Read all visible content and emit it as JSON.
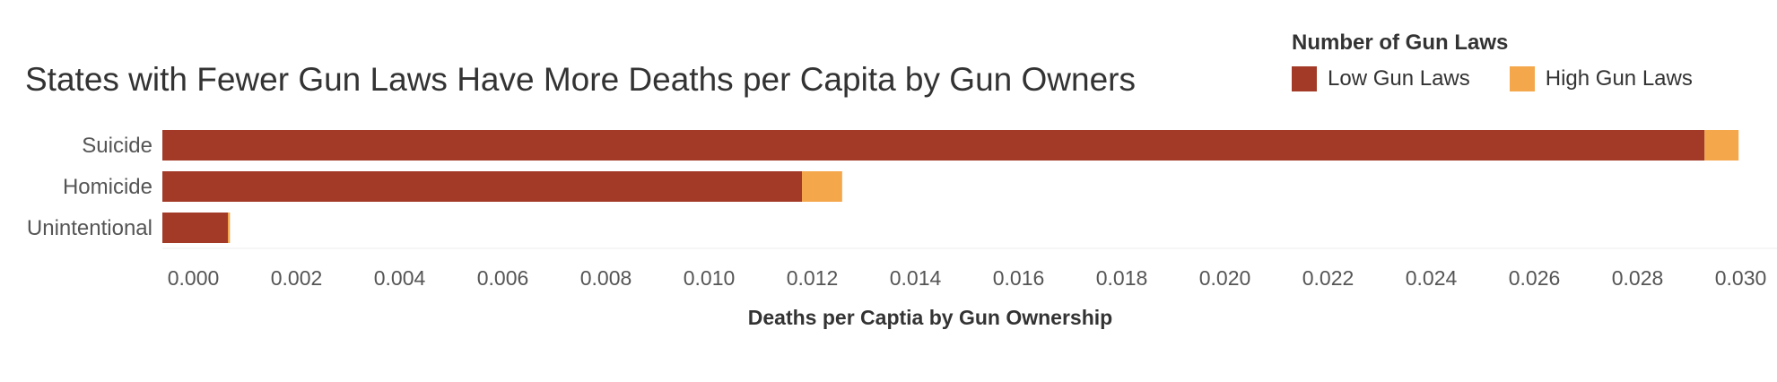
{
  "chart_data": {
    "type": "bar",
    "orientation": "horizontal",
    "stacked": true,
    "title": "States with Fewer Gun Laws Have More Deaths per Capita by Gun Owners",
    "xlabel": "Deaths per Captia by Gun Ownership",
    "ylabel": "",
    "categories": [
      "Suicide",
      "Homicide",
      "Unintentional"
    ],
    "series": [
      {
        "name": "Low Gun Laws",
        "color": "#a33a27",
        "values": [
          0.0293,
          0.0118,
          0.00067
        ]
      },
      {
        "name": "High Gun Laws",
        "color": "#f5a74b",
        "values": [
          0.00066,
          0.00078,
          4e-05
        ]
      }
    ],
    "xlim": [
      -0.0006,
      0.0308
    ],
    "xticks": [
      "0.000",
      "0.002",
      "0.004",
      "0.006",
      "0.008",
      "0.010",
      "0.012",
      "0.014",
      "0.016",
      "0.018",
      "0.020",
      "0.022",
      "0.024",
      "0.026",
      "0.028",
      "0.030"
    ],
    "legend": {
      "title": "Number of Gun Laws",
      "placement": "top-right"
    },
    "grid": false
  }
}
